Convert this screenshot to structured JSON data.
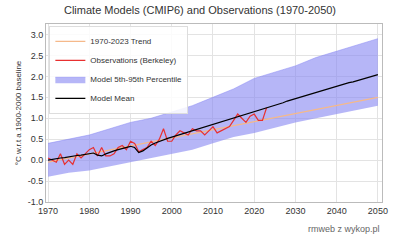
{
  "chart_data": {
    "type": "line",
    "title": "Climate Models (CMIP6) and Observations (1970-2050)",
    "y_label": "°C w.r.t a 1900-2000 baseline",
    "annotations": [
      "rmweb z wykop.pl"
    ],
    "xlim": [
      1969.5,
      2051
    ],
    "xticks": [
      1970,
      1980,
      1990,
      2000,
      2010,
      2020,
      2030,
      2040,
      2050
    ],
    "ylim": [
      -1.0,
      3.25
    ],
    "yticks": [
      {
        "value": -1.0,
        "label": "-1.0"
      },
      -0.5,
      {
        "value": 0.0,
        "label": "0.0"
      },
      0.5,
      {
        "value": 1.0,
        "label": "1.0"
      },
      1.5,
      {
        "value": 2.0,
        "label": "2.0"
      },
      2.5,
      {
        "value": 3.0,
        "label": "3.0"
      }
    ],
    "grid": true,
    "legend": "upper left",
    "series": [
      {
        "name": "Model Mean",
        "color": "#000000",
        "x": [
          1970,
          1971,
          1972,
          1973,
          1974,
          1975,
          1976,
          1977,
          1978,
          1979,
          1980,
          1981,
          1982,
          1983,
          1984,
          1985,
          1986,
          1987,
          1988,
          1989,
          1990,
          1991,
          1992,
          1993,
          1994,
          1995,
          1996,
          1997,
          1998,
          1999,
          2000,
          2001,
          2002,
          2003,
          2004,
          2005,
          2006,
          2007,
          2008,
          2009,
          2010,
          2011,
          2012,
          2013,
          2014,
          2015,
          2016,
          2017,
          2018,
          2019,
          2020,
          2021,
          2022,
          2023,
          2024,
          2025,
          2026,
          2027,
          2028,
          2029,
          2030,
          2031,
          2032,
          2033,
          2034,
          2035,
          2036,
          2037,
          2038,
          2039,
          2040,
          2041,
          2042,
          2043,
          2044,
          2045,
          2046,
          2047,
          2048,
          2049,
          2050
        ],
        "values": [
          0.0,
          0.02,
          0.03,
          0.05,
          0.06,
          0.08,
          0.09,
          0.11,
          0.12,
          0.14,
          0.16,
          0.17,
          0.12,
          0.1,
          0.15,
          0.19,
          0.22,
          0.25,
          0.28,
          0.31,
          0.33,
          0.3,
          0.18,
          0.22,
          0.3,
          0.36,
          0.41,
          0.45,
          0.49,
          0.52,
          0.55,
          0.58,
          0.61,
          0.64,
          0.67,
          0.7,
          0.73,
          0.76,
          0.79,
          0.82,
          0.85,
          0.88,
          0.91,
          0.94,
          0.97,
          1.0,
          1.03,
          1.06,
          1.09,
          1.12,
          1.15,
          1.18,
          1.21,
          1.24,
          1.27,
          1.31,
          1.34,
          1.37,
          1.41,
          1.44,
          1.47,
          1.5,
          1.53,
          1.56,
          1.59,
          1.62,
          1.65,
          1.68,
          1.71,
          1.74,
          1.77,
          1.79,
          1.82,
          1.85,
          1.87,
          1.9,
          1.93,
          1.95,
          1.98,
          2.01,
          2.04
        ]
      },
      {
        "name": "Model 5th-95th Percentile",
        "type": "band",
        "color": "#8585f2",
        "x": [
          1970,
          1975,
          1980,
          1985,
          1990,
          1995,
          2000,
          2005,
          2010,
          2015,
          2020,
          2025,
          2030,
          2035,
          2040,
          2045,
          2050
        ],
        "lower": [
          -0.4,
          -0.3,
          -0.25,
          -0.15,
          -0.05,
          0.05,
          0.15,
          0.25,
          0.4,
          0.55,
          0.65,
          0.78,
          0.9,
          1.0,
          1.1,
          1.2,
          1.3
        ],
        "upper": [
          0.4,
          0.5,
          0.6,
          0.75,
          0.9,
          1.0,
          1.15,
          1.3,
          1.5,
          1.7,
          1.95,
          2.1,
          2.25,
          2.45,
          2.6,
          2.75,
          2.9
        ]
      },
      {
        "name": "Observations (Berkeley)",
        "color": "#e83030",
        "x": [
          1970,
          1971,
          1972,
          1973,
          1974,
          1975,
          1976,
          1977,
          1978,
          1979,
          1980,
          1981,
          1982,
          1983,
          1984,
          1985,
          1986,
          1987,
          1988,
          1989,
          1990,
          1991,
          1992,
          1993,
          1994,
          1995,
          1996,
          1997,
          1998,
          1999,
          2000,
          2001,
          2002,
          2003,
          2004,
          2005,
          2006,
          2007,
          2008,
          2009,
          2010,
          2011,
          2012,
          2013,
          2014,
          2015,
          2016,
          2017,
          2018,
          2019,
          2020,
          2021,
          2022,
          2023
        ],
        "values": [
          0.05,
          0.0,
          -0.05,
          0.15,
          -0.1,
          0.0,
          -0.1,
          0.15,
          0.05,
          0.15,
          0.25,
          0.3,
          0.1,
          0.3,
          0.1,
          0.1,
          0.15,
          0.3,
          0.35,
          0.25,
          0.45,
          0.4,
          0.2,
          0.25,
          0.3,
          0.45,
          0.35,
          0.5,
          0.75,
          0.45,
          0.45,
          0.6,
          0.7,
          0.65,
          0.6,
          0.75,
          0.7,
          0.7,
          0.6,
          0.7,
          0.8,
          0.65,
          0.7,
          0.75,
          0.8,
          0.95,
          1.1,
          1.0,
          0.9,
          1.05,
          1.1,
          0.95,
          0.95,
          1.25
        ]
      },
      {
        "name": "1970-2023 Trend",
        "color": "#f5b98a",
        "x": [
          1970,
          2050
        ],
        "values": [
          -0.05,
          1.5
        ]
      }
    ]
  }
}
